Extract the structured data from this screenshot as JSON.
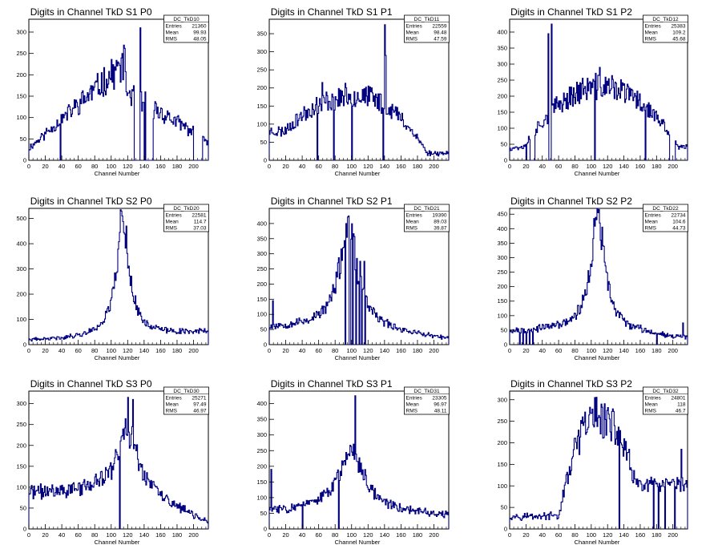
{
  "histogram_color": "#000080",
  "chart_data": [
    {
      "type": "histogram",
      "title": "Digits in Channel TkD S1 P0",
      "xlabel": "Channel Number",
      "ylabel": "",
      "xlim": [
        0,
        218
      ],
      "ylim": [
        0,
        330
      ],
      "xticks": [
        0,
        20,
        40,
        60,
        80,
        100,
        120,
        140,
        160,
        180,
        200
      ],
      "yticks": [
        0,
        50,
        100,
        150,
        200,
        250,
        300
      ],
      "stats": {
        "name": "DC_TkD10",
        "entries": "21360",
        "mean": "99.93",
        "rms": "48.05"
      },
      "shape": {
        "kind": "rising",
        "base": 28,
        "peak": 230,
        "center": 118,
        "width": 0,
        "tail": 8,
        "drop": 160,
        "end": 45,
        "seed": 11
      },
      "spikes": [
        [
          135,
          310
        ],
        [
          137,
          115
        ],
        [
          141,
          160
        ]
      ],
      "gaps": [
        [
          38,
          38
        ],
        [
          128,
          134
        ],
        [
          140,
          140
        ],
        [
          142,
          150
        ],
        [
          200,
          210
        ]
      ]
    },
    {
      "type": "histogram",
      "title": "Digits in Channel TkD S1 P1",
      "xlabel": "Channel Number",
      "ylabel": "",
      "xlim": [
        0,
        218
      ],
      "ylim": [
        0,
        390
      ],
      "xticks": [
        0,
        20,
        40,
        60,
        80,
        100,
        120,
        140,
        160,
        180,
        200
      ],
      "yticks": [
        0,
        50,
        100,
        150,
        200,
        250,
        300,
        350
      ],
      "stats": {
        "name": "DC_TkD11",
        "entries": "22559",
        "mean": "98.48",
        "rms": "47.59"
      },
      "shape": {
        "kind": "dome",
        "base": 80,
        "peak": 180,
        "center": 105,
        "width": 55,
        "tail": 20,
        "drop": 0,
        "end": 20,
        "seed": 23
      },
      "spikes": [
        [
          64,
          215
        ],
        [
          140,
          375
        ],
        [
          141,
          290
        ]
      ],
      "gaps": [
        [
          58,
          58
        ],
        [
          78,
          78
        ],
        [
          100,
          100
        ],
        [
          138,
          138
        ]
      ]
    },
    {
      "type": "histogram",
      "title": "Digits in Channel TkD S1 P2",
      "xlabel": "Channel Number",
      "ylabel": "",
      "xlim": [
        0,
        218
      ],
      "ylim": [
        0,
        440
      ],
      "xticks": [
        0,
        20,
        40,
        60,
        80,
        100,
        120,
        140,
        160,
        180,
        200
      ],
      "yticks": [
        0,
        50,
        100,
        150,
        200,
        250,
        300,
        350,
        400
      ],
      "stats": {
        "name": "DC_TkD12",
        "entries": "25383",
        "mean": "109.2",
        "rms": "45.68"
      },
      "shape": {
        "kind": "dome",
        "base": 40,
        "peak": 230,
        "center": 112,
        "width": 60,
        "tail": 25,
        "drop": 0,
        "end": 40,
        "seed": 37
      },
      "spikes": [
        [
          47,
          395
        ],
        [
          51,
          425
        ],
        [
          110,
          290
        ]
      ],
      "gaps": [
        [
          20,
          20
        ],
        [
          25,
          30
        ],
        [
          48,
          50
        ],
        [
          104,
          104
        ],
        [
          166,
          166
        ],
        [
          196,
          202
        ]
      ]
    },
    {
      "type": "histogram",
      "title": "Digits in Channel TkD S2 P0",
      "xlabel": "Channel Number",
      "ylabel": "",
      "xlim": [
        0,
        218
      ],
      "ylim": [
        0,
        540
      ],
      "xticks": [
        0,
        20,
        40,
        60,
        80,
        100,
        120,
        140,
        160,
        180,
        200
      ],
      "yticks": [
        0,
        100,
        200,
        300,
        400,
        500
      ],
      "stats": {
        "name": "DC_TkD20",
        "entries": "22581",
        "mean": "114.7",
        "rms": "37.03"
      },
      "shape": {
        "kind": "peak",
        "base": 14,
        "peak": 460,
        "center": 114,
        "width": 9,
        "tail": 48,
        "drop": 0,
        "end": 50,
        "seed": 41
      },
      "spikes": [
        [
          113,
          510
        ]
      ],
      "gaps": []
    },
    {
      "type": "histogram",
      "title": "Digits in Channel TkD S2 P1",
      "xlabel": "Channel Number",
      "ylabel": "",
      "xlim": [
        0,
        218
      ],
      "ylim": [
        0,
        450
      ],
      "xticks": [
        0,
        20,
        40,
        60,
        80,
        100,
        120,
        140,
        160,
        180,
        200
      ],
      "yticks": [
        0,
        50,
        100,
        150,
        200,
        250,
        300,
        350,
        400
      ],
      "stats": {
        "name": "DC_TkD21",
        "entries": "19390",
        "mean": "89.03",
        "rms": "39.87"
      },
      "shape": {
        "kind": "peak",
        "base": 55,
        "peak": 360,
        "center": 96,
        "width": 13,
        "tail": 25,
        "drop": 0,
        "end": 15,
        "seed": 53
      },
      "spikes": [
        [
          4,
          145
        ],
        [
          96,
          425
        ],
        [
          110,
          275
        ],
        [
          115,
          275
        ]
      ],
      "gaps": [
        [
          92,
          92
        ],
        [
          97,
          98
        ],
        [
          101,
          101
        ],
        [
          105,
          105
        ],
        [
          109,
          109
        ],
        [
          112,
          112
        ],
        [
          116,
          116
        ]
      ]
    },
    {
      "type": "histogram",
      "title": "Digits in Channel TkD S2 P2",
      "xlabel": "Channel Number",
      "ylabel": "",
      "xlim": [
        0,
        218
      ],
      "ylim": [
        0,
        470
      ],
      "xticks": [
        0,
        20,
        40,
        60,
        80,
        100,
        120,
        140,
        160,
        180,
        200
      ],
      "yticks": [
        0,
        50,
        100,
        150,
        200,
        250,
        300,
        350,
        400,
        450
      ],
      "stats": {
        "name": "DC_TkD22",
        "entries": "22734",
        "mean": "104.6",
        "rms": "44.73"
      },
      "shape": {
        "kind": "peak",
        "base": 45,
        "peak": 410,
        "center": 108,
        "width": 10,
        "tail": 30,
        "drop": 0,
        "end": 20,
        "seed": 67
      },
      "spikes": [
        [
          108,
          455
        ],
        [
          212,
          75
        ]
      ],
      "gaps": [
        [
          12,
          12
        ],
        [
          16,
          16
        ],
        [
          20,
          20
        ],
        [
          24,
          24
        ],
        [
          28,
          28
        ],
        [
          180,
          180
        ]
      ]
    },
    {
      "type": "histogram",
      "title": "Digits in Channel TkD S3 P0",
      "xlabel": "Channel Number",
      "ylabel": "",
      "xlim": [
        0,
        218
      ],
      "ylim": [
        0,
        330
      ],
      "xticks": [
        0,
        20,
        40,
        60,
        80,
        100,
        120,
        140,
        160,
        180,
        200
      ],
      "yticks": [
        0,
        50,
        100,
        150,
        200,
        250,
        300
      ],
      "stats": {
        "name": "DC_TkD30",
        "entries": "25271",
        "mean": "97.49",
        "rms": "46.97"
      },
      "shape": {
        "kind": "peak",
        "base": 85,
        "peak": 210,
        "center": 120,
        "width": 14,
        "tail": 30,
        "drop": 0,
        "end": 10,
        "seed": 71
      },
      "spikes": [
        [
          120,
          315
        ],
        [
          126,
          310
        ]
      ],
      "gaps": [
        [
          110,
          110
        ]
      ]
    },
    {
      "type": "histogram",
      "title": "Digits in Channel TkD S3 P1",
      "xlabel": "Channel Number",
      "ylabel": "",
      "xlim": [
        0,
        218
      ],
      "ylim": [
        0,
        440
      ],
      "xticks": [
        0,
        20,
        40,
        60,
        80,
        100,
        120,
        140,
        160,
        180,
        200
      ],
      "yticks": [
        0,
        50,
        100,
        150,
        200,
        250,
        300,
        350,
        400
      ],
      "stats": {
        "name": "DC_TkD31",
        "entries": "23305",
        "mean": "96.97",
        "rms": "48.11"
      },
      "shape": {
        "kind": "peak",
        "base": 55,
        "peak": 230,
        "center": 100,
        "width": 18,
        "tail": 25,
        "drop": 0,
        "end": 40,
        "seed": 83
      },
      "spikes": [
        [
          2,
          190
        ],
        [
          104,
          425
        ]
      ],
      "gaps": [
        [
          40,
          40
        ],
        [
          84,
          84
        ]
      ]
    },
    {
      "type": "histogram",
      "title": "Digits in Channel TkD S3 P2",
      "xlabel": "Channel Number",
      "ylabel": "",
      "xlim": [
        0,
        218
      ],
      "ylim": [
        0,
        320
      ],
      "xticks": [
        0,
        20,
        40,
        60,
        80,
        100,
        120,
        140,
        160,
        180,
        200
      ],
      "yticks": [
        0,
        50,
        100,
        150,
        200,
        250,
        300
      ],
      "stats": {
        "name": "DC_TkD32",
        "entries": "24801",
        "mean": "118",
        "rms": "46.7"
      },
      "shape": {
        "kind": "dome",
        "base": 30,
        "peak": 260,
        "center": 108,
        "width": 30,
        "tail": 80,
        "drop": 0,
        "end": 100,
        "seed": 97
      },
      "spikes": [
        [
          104,
          305
        ],
        [
          112,
          290
        ],
        [
          210,
          185
        ]
      ],
      "gaps": [
        [
          134,
          134
        ],
        [
          176,
          176
        ],
        [
          182,
          182
        ],
        [
          190,
          190
        ],
        [
          202,
          202
        ]
      ]
    }
  ]
}
